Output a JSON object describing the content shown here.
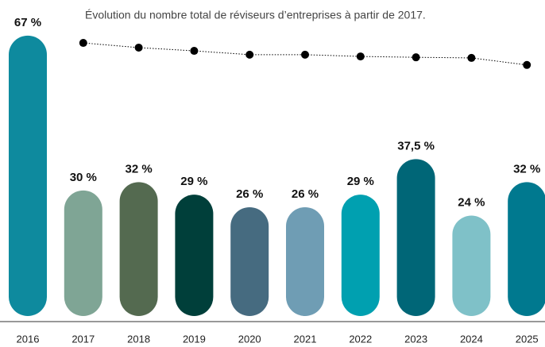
{
  "chart_data": {
    "type": "bar",
    "annotation": "Évolution du nombre total de réviseurs d’entreprises à partir de 2017.",
    "categories": [
      "2016",
      "2017",
      "2018",
      "2019",
      "2020",
      "2021",
      "2022",
      "2023",
      "2024",
      "2025"
    ],
    "values": [
      67,
      30,
      32,
      29,
      26,
      26,
      29,
      37.5,
      24,
      32
    ],
    "value_labels": [
      "67 %",
      "30 %",
      "32 %",
      "29 %",
      "26 %",
      "26 %",
      "29 %",
      "37,5 %",
      "24 %",
      "32 %"
    ],
    "colors": [
      "#0e8a9e",
      "#7fa595",
      "#546a50",
      "#003f3a",
      "#466b80",
      "#6f9db4",
      "#00a0b0",
      "#006677",
      "#7fc1c8",
      "#00798f"
    ],
    "ylim": [
      0,
      70
    ],
    "trend": {
      "values": [
        null,
        93.5,
        91.9,
        90.8,
        89.5,
        89.5,
        88.9,
        88.6,
        88.4,
        86
      ],
      "color": "#000000",
      "y2lim": [
        0,
        100
      ]
    }
  }
}
